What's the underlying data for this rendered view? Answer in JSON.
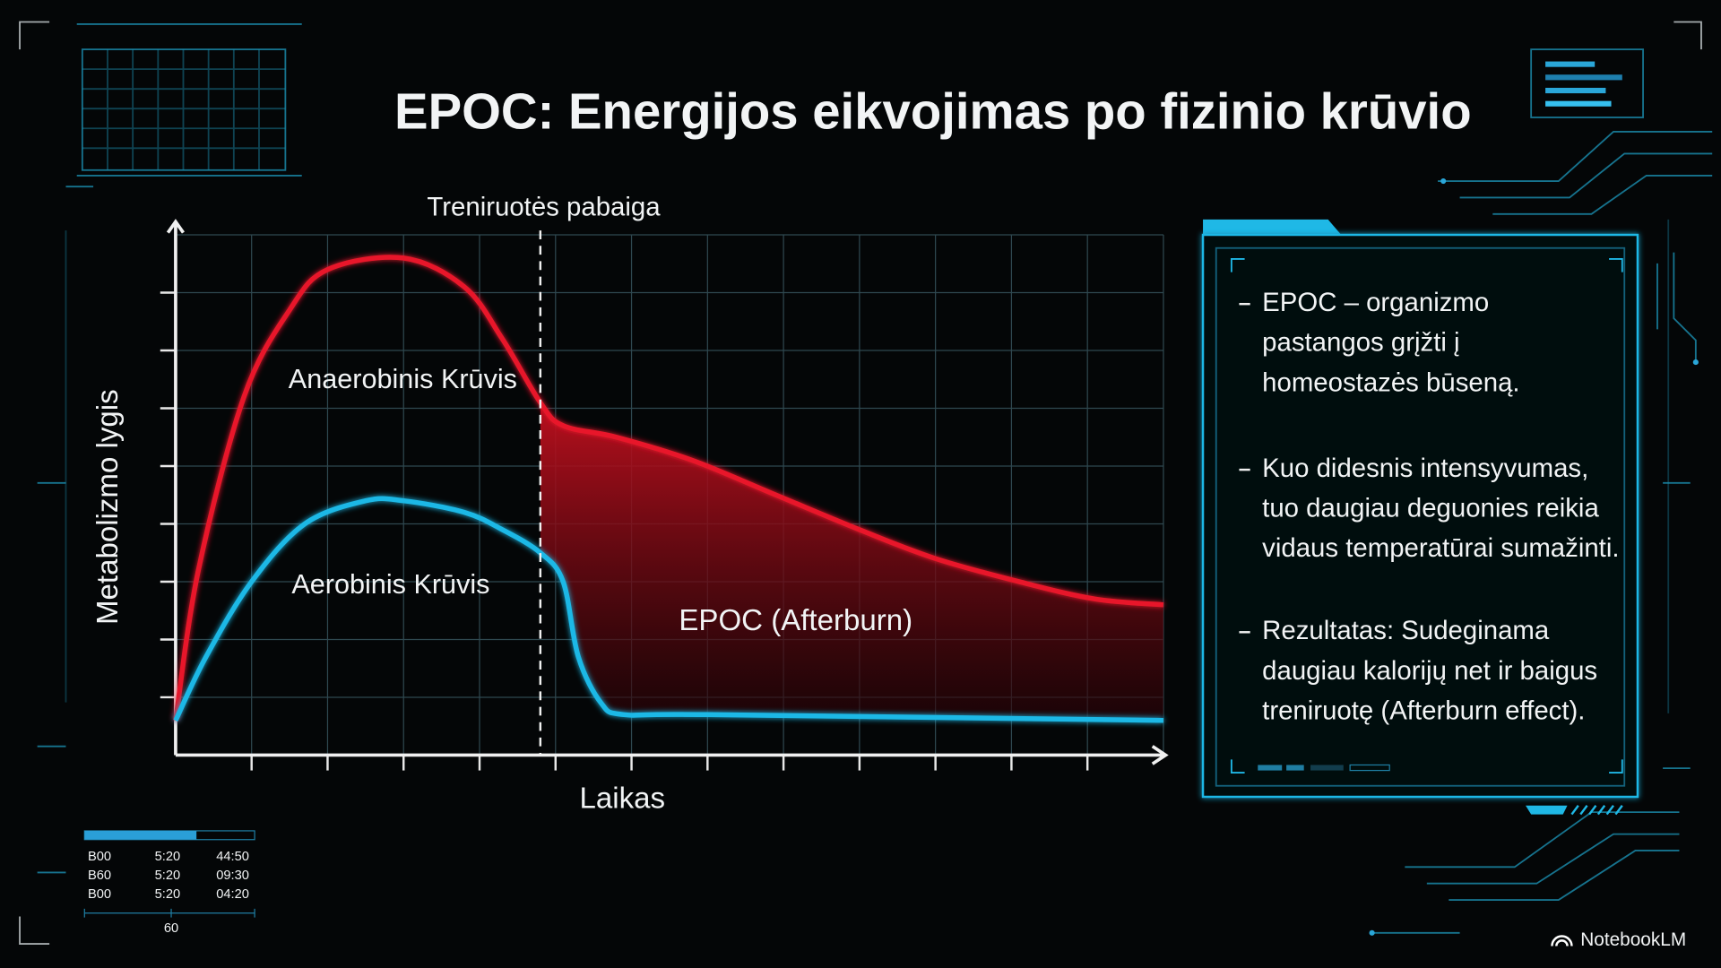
{
  "chart_data": {
    "type": "line",
    "title": "EPOC: Energijos eikvojimas po fizinio krūvio",
    "x_label": "Laikas",
    "y_label": "Metabolizmo lygis",
    "xlim": [
      0,
      13
    ],
    "ylim": [
      0,
      9
    ],
    "xticks": [
      1,
      2,
      3,
      4,
      5,
      6,
      7,
      8,
      9,
      10,
      11,
      12
    ],
    "yticks": [
      1,
      2,
      3,
      4,
      5,
      6,
      7,
      8
    ],
    "grid": true,
    "series": [
      {
        "name": "Anaerobinis Krūvis",
        "color": "#e8192c",
        "x": [
          0,
          0.3,
          0.9,
          1.5,
          2.0,
          3.0,
          3.8,
          4.3,
          4.8,
          5.1,
          5.8,
          6.8,
          7.9,
          9.0,
          10.0,
          11.1,
          12.1,
          13
        ],
        "values": [
          0.6,
          3.2,
          6.2,
          7.7,
          8.4,
          8.6,
          8.1,
          7.2,
          6.1,
          5.7,
          5.5,
          5.1,
          4.5,
          3.9,
          3.4,
          3.0,
          2.7,
          2.6
        ]
      },
      {
        "name": "Aerobinis Krūvis",
        "color": "#1fb8e6",
        "x": [
          0,
          0.4,
          1.0,
          1.7,
          2.5,
          3.0,
          3.8,
          4.3,
          4.8,
          5.1,
          5.3,
          5.6,
          5.9,
          7,
          13
        ],
        "values": [
          0.6,
          1.7,
          3.0,
          4.0,
          4.4,
          4.4,
          4.2,
          3.9,
          3.5,
          3.0,
          1.7,
          0.9,
          0.7,
          0.7,
          0.6
        ]
      }
    ],
    "annotations": [
      {
        "text": "Treniruotės pabaiga",
        "x": 4.8
      },
      {
        "text": "EPOC (Afterburn)"
      }
    ]
  },
  "panel": {
    "bullets": [
      [
        "EPOC – organizmo",
        "pastangos grįžti į",
        "homeostazės būseną."
      ],
      [
        "Kuo didesnis intensyvumas,",
        "tuo daugiau deguonies reikia",
        "vidaus temperatūrai sumažinti."
      ],
      [
        "Rezultatas: Sudeginama",
        "daugiau kalorijų net ir baigus",
        "treniruotę (Afterburn effect)."
      ]
    ]
  },
  "status_table": {
    "rows": [
      [
        "B00",
        "5:20",
        "44:50"
      ],
      [
        "B60",
        "5:20",
        "09:30"
      ],
      [
        "B00",
        "5:20",
        "04:20"
      ]
    ],
    "footer": "60"
  },
  "brand": "NotebookLM"
}
